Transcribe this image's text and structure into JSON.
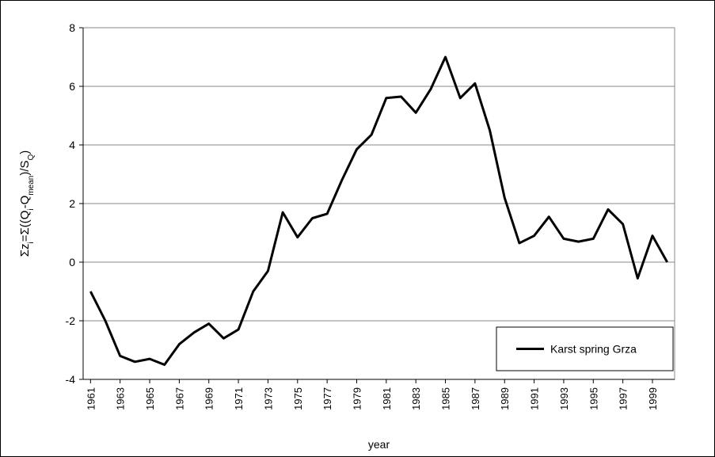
{
  "chart_data": {
    "type": "line",
    "x": [
      1961,
      1962,
      1963,
      1964,
      1965,
      1966,
      1967,
      1968,
      1969,
      1970,
      1971,
      1972,
      1973,
      1974,
      1975,
      1976,
      1977,
      1978,
      1979,
      1980,
      1981,
      1982,
      1983,
      1984,
      1985,
      1986,
      1987,
      1988,
      1989,
      1990,
      1991,
      1992,
      1993,
      1994,
      1995,
      1996,
      1997,
      1998,
      1999,
      2000
    ],
    "series": [
      {
        "name": "Karst spring Grza",
        "color": "#000000",
        "values": [
          -1.0,
          -2.0,
          -3.2,
          -3.4,
          -3.3,
          -3.5,
          -2.8,
          -2.4,
          -2.1,
          -2.6,
          -2.3,
          -1.0,
          -0.3,
          1.7,
          0.85,
          1.5,
          1.65,
          2.8,
          3.85,
          4.35,
          5.6,
          5.65,
          5.1,
          5.9,
          7.0,
          5.6,
          6.1,
          4.5,
          2.2,
          0.65,
          0.9,
          1.55,
          0.8,
          0.7,
          0.8,
          1.8,
          1.3,
          -0.55,
          0.9,
          0.0
        ]
      }
    ],
    "xlim": [
      1960.5,
      2000.5
    ],
    "xticks": [
      1961,
      1963,
      1965,
      1967,
      1969,
      1971,
      1973,
      1975,
      1977,
      1979,
      1981,
      1983,
      1985,
      1987,
      1989,
      1991,
      1993,
      1995,
      1997,
      1999
    ],
    "ylim": [
      -4,
      8
    ],
    "yticks": [
      -4,
      -2,
      0,
      2,
      4,
      6,
      8
    ],
    "grid": true,
    "legend": "lower right",
    "xlabel": "year",
    "ylabel_parts": [
      {
        "text": "Σz"
      },
      {
        "text": "i",
        "sub": true
      },
      {
        "text": "=Σ((Q"
      },
      {
        "text": "i",
        "sub": true
      },
      {
        "text": "-Q"
      },
      {
        "text": "mean",
        "sub": true
      },
      {
        "text": ")/S"
      },
      {
        "text": "Q",
        "sub": true
      },
      {
        "text": ")"
      }
    ]
  }
}
